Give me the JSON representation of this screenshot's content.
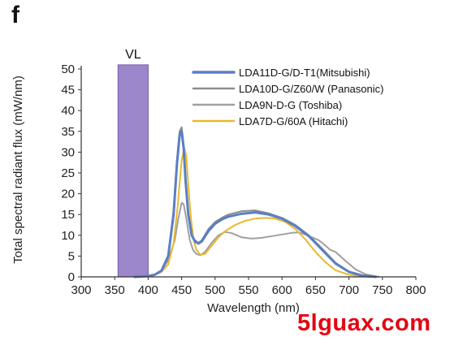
{
  "panel_letter": "f",
  "watermark": "5lguax.com",
  "chart_data": {
    "type": "line",
    "xlabel": "Wavelength (nm)",
    "ylabel": "Total spectral radiant flux (mW/nm)",
    "xlim": [
      300,
      800
    ],
    "ylim": [
      0,
      50
    ],
    "xticks": [
      300,
      350,
      400,
      450,
      500,
      550,
      600,
      650,
      700,
      750,
      800
    ],
    "yticks": [
      0,
      5,
      10,
      15,
      20,
      25,
      30,
      35,
      40,
      45,
      50
    ],
    "grid": false,
    "legend_position": "top-right",
    "band": {
      "label": "VL",
      "x_range": [
        355,
        400
      ],
      "height": 51,
      "color": "#9b87c9"
    },
    "series": [
      {
        "name": "LDA11D-G/D-T1(Mitsubishi)",
        "color": "#5a7fc4",
        "width": 3,
        "x": [
          380,
          400,
          410,
          420,
          430,
          438,
          443,
          447,
          450,
          453,
          456,
          460,
          465,
          470,
          475,
          480,
          490,
          500,
          510,
          520,
          540,
          560,
          580,
          600,
          620,
          640,
          660,
          680,
          700,
          720,
          740
        ],
        "y": [
          0,
          0.2,
          0.5,
          1.5,
          5,
          15,
          27,
          34,
          35,
          31,
          23,
          15,
          10,
          8.5,
          8,
          8.5,
          11,
          12.8,
          13.8,
          14.5,
          15.2,
          15.5,
          15,
          14,
          12.2,
          9.8,
          6.5,
          3.2,
          1.2,
          0.3,
          0
        ]
      },
      {
        "name": "LDA10D-G/Z60/W (Panasonic)",
        "color": "#8c8c8c",
        "width": 2,
        "x": [
          380,
          400,
          410,
          420,
          430,
          438,
          443,
          447,
          450,
          453,
          456,
          460,
          465,
          470,
          475,
          480,
          490,
          500,
          510,
          520,
          540,
          560,
          580,
          600,
          620,
          640,
          660,
          680,
          700,
          720,
          740
        ],
        "y": [
          0,
          0.2,
          0.5,
          1.5,
          5,
          16,
          28,
          35,
          36,
          32,
          24,
          15,
          10,
          8.8,
          8.2,
          8.8,
          11.5,
          13.2,
          14.2,
          15,
          15.8,
          16,
          15.3,
          14.2,
          12.5,
          10,
          6.8,
          3.4,
          1.3,
          0.4,
          0
        ]
      },
      {
        "name": "LDA9N-D-G (Toshiba)",
        "color": "#a0a0a0",
        "width": 2,
        "x": [
          380,
          400,
          410,
          420,
          430,
          440,
          445,
          450,
          453,
          457,
          462,
          467,
          472,
          478,
          485,
          495,
          505,
          515,
          525,
          540,
          555,
          570,
          585,
          600,
          615,
          625,
          635,
          645,
          655,
          665,
          672,
          680,
          695,
          710,
          725,
          745
        ],
        "y": [
          0,
          0.2,
          0.6,
          1.5,
          4,
          9,
          14,
          17.8,
          17.5,
          14,
          9,
          6.5,
          5.5,
          5.2,
          6,
          8.2,
          10,
          10.8,
          10.5,
          9.5,
          9.2,
          9.4,
          9.8,
          10.2,
          10.6,
          10.7,
          10.2,
          9.5,
          8.8,
          7.5,
          6.5,
          6,
          3.8,
          1.8,
          0.6,
          0
        ]
      },
      {
        "name": "LDA7D-G/60A (Hitachi)",
        "color": "#e8b930",
        "width": 2,
        "x": [
          385,
          400,
          410,
          420,
          430,
          438,
          444,
          450,
          454,
          457,
          460,
          464,
          468,
          472,
          478,
          485,
          495,
          505,
          515,
          530,
          545,
          560,
          575,
          590,
          605,
          620,
          635,
          650,
          665,
          680,
          700,
          720,
          740
        ],
        "y": [
          0,
          0.2,
          0.5,
          1.2,
          3,
          8,
          17,
          28,
          31,
          29,
          22,
          14,
          9,
          6.5,
          5.3,
          5.5,
          7.5,
          9.5,
          11,
          12.5,
          13.5,
          14,
          14.2,
          14,
          13.2,
          11.5,
          9,
          6,
          3.5,
          1.6,
          0.5,
          0.1,
          0
        ]
      }
    ]
  }
}
